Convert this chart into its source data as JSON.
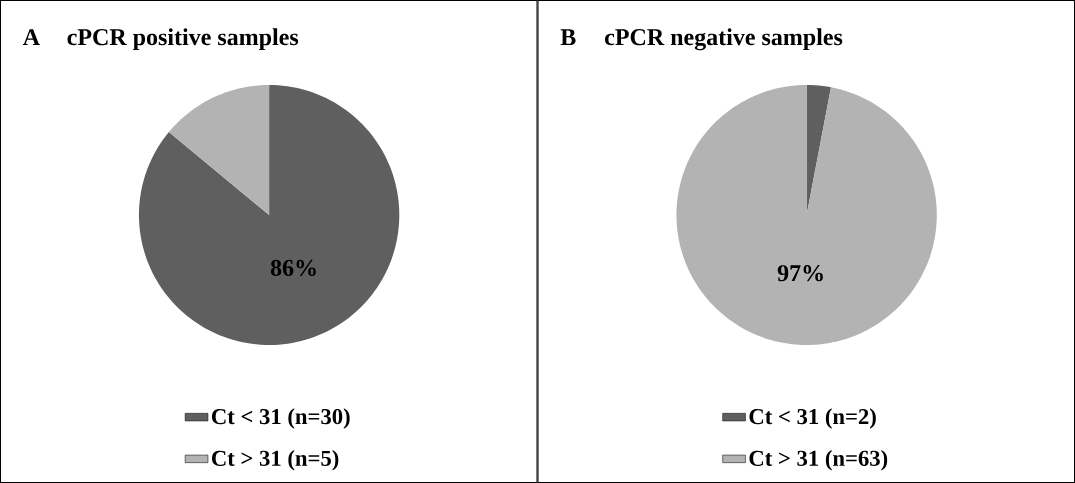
{
  "chart_data": [
    {
      "type": "pie",
      "title": "cPCR positive samples",
      "annotations": [
        "A"
      ],
      "categories": [
        "Ct < 31 (n=30)",
        "Ct > 31 (n=5)"
      ],
      "values": [
        86,
        14
      ],
      "value_labels": [
        "86%",
        null
      ],
      "colors": [
        "#5f5f5f",
        "#b3b3b3"
      ],
      "legend": "bottom"
    },
    {
      "type": "pie",
      "title": "cPCR negative samples",
      "annotations": [
        "B"
      ],
      "categories": [
        "Ct < 31 (n=2)",
        "Ct > 31 (n=63)"
      ],
      "values": [
        3,
        97
      ],
      "value_labels": [
        null,
        "97%"
      ],
      "colors": [
        "#5f5f5f",
        "#b3b3b3"
      ],
      "legend": "bottom"
    }
  ]
}
